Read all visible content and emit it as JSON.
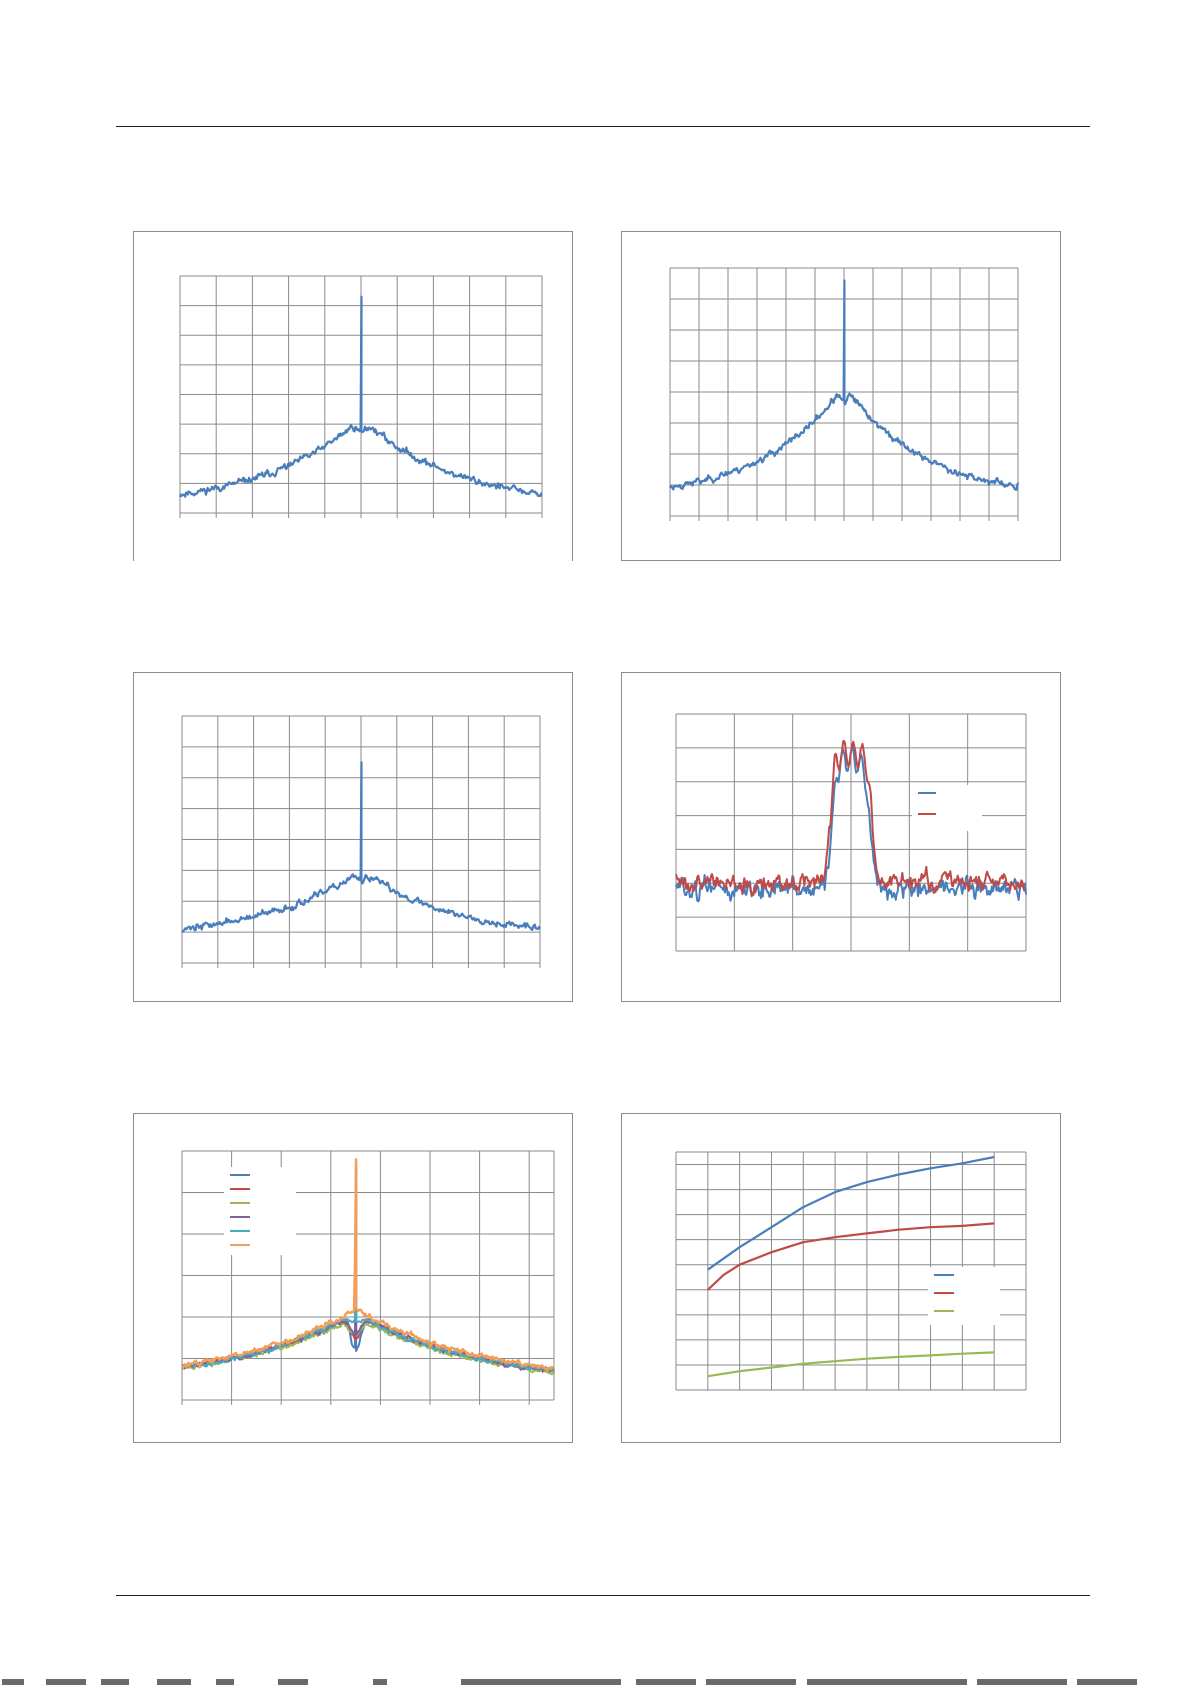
{
  "page": {
    "header_rule": true,
    "footer_rule": true
  },
  "chart_data": [
    {
      "id": "chart1",
      "type": "line",
      "grid": true,
      "title": "",
      "xlabel": "",
      "ylabel": "",
      "xlim": [
        -5,
        5
      ],
      "ylim": [
        0,
        8
      ],
      "x_grid_divisions": 10,
      "y_grid_divisions": 8,
      "series": [
        {
          "color": "#4a7ebb",
          "line_width": 2.2,
          "profile": "spur",
          "floor": 0.2,
          "peak_level": 3.2,
          "peak_width": 2.6,
          "notch": 0.45,
          "spur_height": 7.3,
          "noise": 0.22,
          "seed": 11,
          "points": 420
        }
      ]
    },
    {
      "id": "chart2",
      "type": "line",
      "grid": true,
      "title": "",
      "xlabel": "",
      "ylabel": "",
      "xlim": [
        -6,
        6
      ],
      "ylim": [
        0,
        8
      ],
      "x_grid_divisions": 12,
      "y_grid_divisions": 8,
      "series": [
        {
          "color": "#4a7ebb",
          "line_width": 2.2,
          "profile": "spur",
          "floor": 0.5,
          "peak_level": 4.2,
          "peak_width": 2.8,
          "notch": 0.55,
          "spur_height": 7.6,
          "noise": 0.2,
          "seed": 23,
          "points": 420
        }
      ]
    },
    {
      "id": "chart3",
      "type": "line",
      "grid": true,
      "title": "",
      "xlabel": "",
      "ylabel": "",
      "xlim": [
        -5,
        5
      ],
      "ylim": [
        0,
        8
      ],
      "x_grid_divisions": 10,
      "y_grid_divisions": 8,
      "series": [
        {
          "color": "#4a7ebb",
          "line_width": 2.2,
          "profile": "spur",
          "floor": 0.8,
          "peak_level": 3.0,
          "peak_width": 2.6,
          "notch": 0.35,
          "spur_height": 6.5,
          "noise": 0.2,
          "seed": 37,
          "points": 420
        }
      ]
    },
    {
      "id": "chart4",
      "type": "line",
      "grid": true,
      "title": "",
      "xlabel": "",
      "ylabel": "",
      "xlim": [
        -3,
        3
      ],
      "ylim": [
        0,
        7
      ],
      "x_grid_divisions": 6,
      "y_grid_divisions": 7,
      "legend": {
        "position": "right",
        "entries": 2
      },
      "series": [
        {
          "color": "#4a7ebb",
          "line_width": 2,
          "profile": "plateau",
          "floor": 1.85,
          "plateau": 5.6,
          "half_width": 0.32,
          "noise": 0.55,
          "seed": 51,
          "points": 380
        },
        {
          "color": "#be4b48",
          "line_width": 2,
          "profile": "plateau",
          "floor": 2.05,
          "plateau": 5.8,
          "half_width": 0.36,
          "noise": 0.45,
          "seed": 63,
          "points": 380
        }
      ]
    },
    {
      "id": "chart5",
      "type": "line",
      "grid": true,
      "title": "",
      "xlabel": "",
      "ylabel": "",
      "xlim": [
        -3.5,
        4
      ],
      "ylim": [
        0,
        6
      ],
      "x_grid_divisions": 7.5,
      "y_grid_divisions": 6,
      "legend": {
        "position": "top-left",
        "entries": 6
      },
      "series": [
        {
          "color": "#4a7ebb",
          "line_width": 2,
          "profile": "spur",
          "floor": 0.4,
          "peak_level": 2.1,
          "peak_width": 2.4,
          "notch": 0.9,
          "spur_height": 5.5,
          "noise": 0.12,
          "seed": 71,
          "points": 360
        },
        {
          "color": "#be4b48",
          "line_width": 2,
          "profile": "spur",
          "floor": 0.4,
          "peak_level": 2.1,
          "peak_width": 2.4,
          "notch": 0.6,
          "spur_height": 5.6,
          "noise": 0.12,
          "seed": 72,
          "points": 360
        },
        {
          "color": "#98b954",
          "line_width": 2,
          "profile": "spur",
          "floor": 0.4,
          "peak_level": 2.0,
          "peak_width": 2.4,
          "notch": 0.4,
          "spur_height": 5.6,
          "noise": 0.12,
          "seed": 73,
          "points": 360
        },
        {
          "color": "#7d60a0",
          "line_width": 2,
          "profile": "spur",
          "floor": 0.4,
          "peak_level": 2.1,
          "peak_width": 2.4,
          "notch": 0.5,
          "spur_height": 5.7,
          "noise": 0.12,
          "seed": 74,
          "points": 360
        },
        {
          "color": "#46aac5",
          "line_width": 2,
          "profile": "spur",
          "floor": 0.4,
          "peak_level": 2.1,
          "peak_width": 2.4,
          "notch": 0.2,
          "spur_height": 5.7,
          "noise": 0.12,
          "seed": 75,
          "points": 360
        },
        {
          "color": "#f59d56",
          "line_width": 2.4,
          "profile": "spur",
          "floor": 0.4,
          "peak_level": 2.2,
          "peak_width": 2.5,
          "notch": 0.0,
          "spur_height": 5.8,
          "noise": 0.12,
          "seed": 76,
          "points": 360
        }
      ]
    },
    {
      "id": "chart6",
      "type": "line",
      "grid": true,
      "title": "",
      "xlabel": "",
      "ylabel": "",
      "xlim": [
        0,
        11
      ],
      "ylim": [
        0,
        9.5
      ],
      "x_grid_divisions": 11,
      "y_grid_divisions": 9.5,
      "legend": {
        "position": "right",
        "entries": 3
      },
      "series": [
        {
          "color": "#4a7ebb",
          "line_width": 2.2,
          "x": [
            1,
            2,
            3,
            4,
            5,
            6,
            7,
            8,
            9,
            10
          ],
          "y": [
            4.8,
            5.7,
            6.5,
            7.3,
            7.9,
            8.3,
            8.6,
            8.85,
            9.05,
            9.3
          ]
        },
        {
          "color": "#be4b48",
          "line_width": 2.2,
          "x": [
            1,
            1.5,
            2,
            3,
            4,
            5,
            6,
            7,
            8,
            9,
            10
          ],
          "y": [
            4.0,
            4.6,
            5.0,
            5.5,
            5.9,
            6.1,
            6.25,
            6.4,
            6.5,
            6.55,
            6.65
          ]
        },
        {
          "color": "#98b954",
          "line_width": 2.2,
          "x": [
            1,
            2,
            3,
            4,
            5,
            6,
            7,
            8,
            9,
            10
          ],
          "y": [
            0.55,
            0.75,
            0.9,
            1.05,
            1.15,
            1.25,
            1.32,
            1.38,
            1.45,
            1.5
          ]
        }
      ]
    }
  ]
}
